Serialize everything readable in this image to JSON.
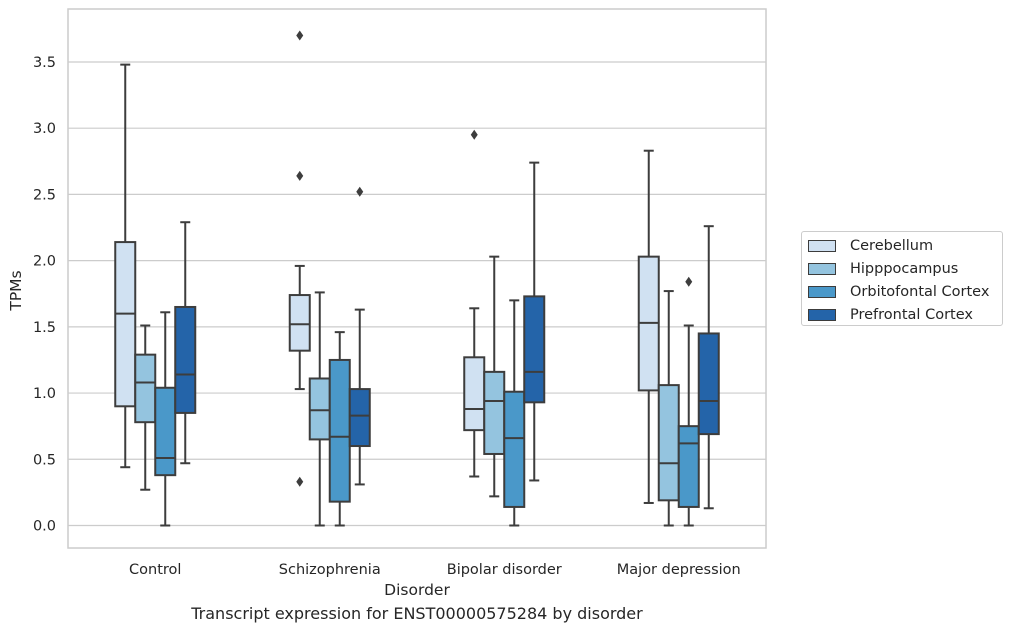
{
  "caption": "Transcript expression for ENST00000575284 by disorder",
  "chart_data": {
    "type": "box",
    "xlabel": "Disorder",
    "ylabel": "TPMs",
    "ylim": [
      -0.17,
      3.9
    ],
    "yticks": [
      "0.0",
      "0.5",
      "1.0",
      "1.5",
      "2.0",
      "2.5",
      "3.0",
      "3.5"
    ],
    "grid": "horizontal",
    "legend_position": "right",
    "categories": [
      "Control",
      "Schizophrenia",
      "Bipolar disorder",
      "Major depression"
    ],
    "series": [
      {
        "name": "Cerebellum",
        "color": "#d0e1f2",
        "boxes": [
          {
            "whislo": 0.44,
            "q1": 0.9,
            "med": 1.6,
            "q3": 2.14,
            "whishi": 3.48,
            "fliers": []
          },
          {
            "whislo": 1.03,
            "q1": 1.32,
            "med": 1.52,
            "q3": 1.74,
            "whishi": 1.96,
            "fliers": [
              2.64,
              3.7,
              0.33
            ]
          },
          {
            "whislo": 0.37,
            "q1": 0.72,
            "med": 0.88,
            "q3": 1.27,
            "whishi": 1.64,
            "fliers": [
              2.95
            ]
          },
          {
            "whislo": 0.17,
            "q1": 1.02,
            "med": 1.53,
            "q3": 2.03,
            "whishi": 2.83,
            "fliers": []
          }
        ]
      },
      {
        "name": "Hipppocampus",
        "color": "#94c4df",
        "boxes": [
          {
            "whislo": 0.27,
            "q1": 0.78,
            "med": 1.08,
            "q3": 1.29,
            "whishi": 1.51,
            "fliers": []
          },
          {
            "whislo": 0.0,
            "q1": 0.65,
            "med": 0.87,
            "q3": 1.11,
            "whishi": 1.76,
            "fliers": []
          },
          {
            "whislo": 0.22,
            "q1": 0.54,
            "med": 0.94,
            "q3": 1.16,
            "whishi": 2.03,
            "fliers": []
          },
          {
            "whislo": 0.0,
            "q1": 0.19,
            "med": 0.47,
            "q3": 1.06,
            "whishi": 1.77,
            "fliers": []
          }
        ]
      },
      {
        "name": "Orbitofontal Cortex",
        "color": "#4a98c9",
        "boxes": [
          {
            "whislo": 0.0,
            "q1": 0.38,
            "med": 0.51,
            "q3": 1.04,
            "whishi": 1.61,
            "fliers": []
          },
          {
            "whislo": 0.0,
            "q1": 0.18,
            "med": 0.67,
            "q3": 1.25,
            "whishi": 1.46,
            "fliers": []
          },
          {
            "whislo": 0.0,
            "q1": 0.14,
            "med": 0.66,
            "q3": 1.01,
            "whishi": 1.7,
            "fliers": []
          },
          {
            "whislo": 0.0,
            "q1": 0.14,
            "med": 0.62,
            "q3": 0.75,
            "whishi": 1.51,
            "fliers": [
              1.84
            ]
          }
        ]
      },
      {
        "name": "Prefrontal Cortex",
        "color": "#2464a9",
        "boxes": [
          {
            "whislo": 0.47,
            "q1": 0.85,
            "med": 1.14,
            "q3": 1.65,
            "whishi": 2.29,
            "fliers": []
          },
          {
            "whislo": 0.31,
            "q1": 0.6,
            "med": 0.83,
            "q3": 1.03,
            "whishi": 1.63,
            "fliers": [
              2.52
            ]
          },
          {
            "whislo": 0.34,
            "q1": 0.93,
            "med": 1.16,
            "q3": 1.73,
            "whishi": 2.74,
            "fliers": []
          },
          {
            "whislo": 0.13,
            "q1": 0.69,
            "med": 0.94,
            "q3": 1.45,
            "whishi": 2.26,
            "fliers": []
          }
        ]
      }
    ]
  }
}
